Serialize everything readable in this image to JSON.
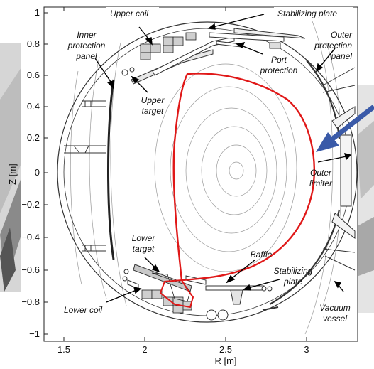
{
  "axes": {
    "xlabel": "R [m]",
    "ylabel": "Z [m]",
    "xticks": [
      "1.5",
      "2",
      "2.5",
      "3"
    ],
    "yticks": [
      "1",
      "0.8",
      "0.6",
      "0.4",
      "0.2",
      "0",
      "−0.2",
      "−0.4",
      "−0.6",
      "−0.8",
      "−1"
    ]
  },
  "labels": {
    "upper_coil": "Upper coil",
    "stabilizing_plate_top": "Stabilizing plate",
    "inner_protection_1": "Inner",
    "inner_protection_2": "protection",
    "inner_protection_3": "panel",
    "outer_protection_1": "Outer",
    "outer_protection_2": "protection",
    "outer_protection_3": "panel",
    "port_protection_1": "Port",
    "port_protection_2": "protection",
    "upper_target_1": "Upper",
    "upper_target_2": "target",
    "outer_limiter_1": "Outer",
    "outer_limiter_2": "limiter",
    "lower_target_1": "Lower",
    "lower_target_2": "target",
    "baffle": "Baffle",
    "stabilizing_plate_bottom_1": "Stabilizing",
    "stabilizing_plate_bottom_2": "plate",
    "lower_coil": "Lower coil",
    "vacuum_vessel_1": "Vacuum",
    "vacuum_vessel_2": "vessel"
  },
  "colors": {
    "plasma_boundary": "#e01818",
    "arrow_overlay": "#3a5aa8",
    "structure": "#333333",
    "flux_surfaces": "#9a9a9a"
  }
}
